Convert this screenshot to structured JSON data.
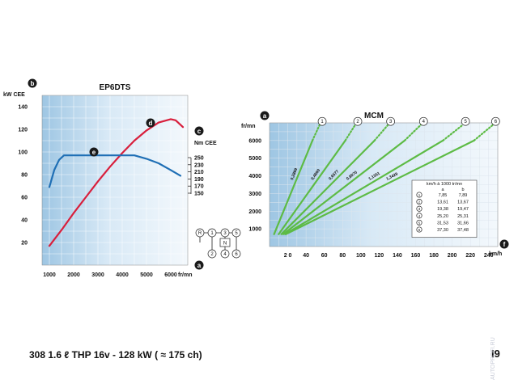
{
  "caption": "308 1.6 ℓ THP 16v - 128 kW ( ≈ 175 ch)",
  "page_number": "I9",
  "watermark": "AUTOPROFI.RU",
  "colors": {
    "power": "#d81f3c",
    "torque": "#1f6fb5",
    "speed_lines": "#5dbb45",
    "panel_left": "#a9cce6",
    "panel_right": "#eef6fc",
    "grid": "#dfe6ec"
  },
  "chart_data": [
    {
      "type": "line",
      "title": "EP6DTS",
      "xlabel": "fr/mn",
      "ylabel_left": "kW CEE",
      "ylabel_right": "Nm CEE",
      "axis_badges": {
        "y_left": "b",
        "y_right": "c",
        "x": "a"
      },
      "x_ticks": [
        1000,
        2000,
        3000,
        4000,
        5000,
        6000
      ],
      "y_ticks": [
        20,
        40,
        60,
        80,
        100,
        120,
        140
      ],
      "y_right_ticks": [
        150,
        170,
        190,
        210,
        230,
        250
      ],
      "xlim": [
        700,
        6700
      ],
      "ylim": [
        0,
        150
      ],
      "grid": true,
      "series": [
        {
          "label": "d",
          "color": "#d81f3c",
          "x": [
            1000,
            1500,
            2000,
            2500,
            3000,
            3500,
            4000,
            4500,
            5000,
            5500,
            6000,
            6200,
            6300,
            6500
          ],
          "y": [
            17,
            31,
            46,
            60,
            74,
            87,
            99,
            110,
            119,
            126,
            129,
            128,
            126,
            122
          ]
        },
        {
          "label": "e",
          "color": "#1f6fb5",
          "x": [
            1000,
            1200,
            1400,
            1600,
            2000,
            3000,
            4000,
            4500,
            5000,
            5500,
            6000,
            6400
          ],
          "y": [
            69,
            84,
            93,
            97,
            97,
            97,
            97,
            97,
            94,
            90,
            84,
            79
          ]
        }
      ],
      "gearshift_labels": [
        "R",
        "1",
        "3",
        "5",
        "2",
        "4",
        "6",
        "N"
      ]
    },
    {
      "type": "line",
      "title": "MCM",
      "ylabel": "fr/mn",
      "xlabel": "km/h",
      "axis_badges": {
        "y": "a",
        "x": "f"
      },
      "x_ticks": [
        20,
        40,
        60,
        80,
        100,
        120,
        140,
        160,
        180,
        200,
        220,
        240
      ],
      "x_tick_labels": [
        "2 0",
        "40",
        "60",
        "80",
        "100",
        "120",
        "140",
        "160",
        "180",
        "200",
        "220",
        "240"
      ],
      "y_ticks": [
        1000,
        2000,
        3000,
        4000,
        5000,
        6000
      ],
      "xlim": [
        0,
        250
      ],
      "ylim": [
        0,
        7000
      ],
      "grid": true,
      "series": [
        {
          "label": "1",
          "ratio": "0,2899",
          "x": [
            5,
            47
          ],
          "y": [
            700,
            6000
          ],
          "ext_x": [
            47,
            55
          ],
          "ext_y": [
            6000,
            6900
          ]
        },
        {
          "label": "2",
          "ratio": "0,4860",
          "x": [
            10,
            83
          ],
          "y": [
            700,
            6000
          ],
          "ext_x": [
            83,
            94
          ],
          "ext_y": [
            6000,
            6900
          ]
        },
        {
          "label": "3",
          "ratio": "0,6577",
          "x": [
            13,
            115
          ],
          "y": [
            700,
            6000
          ],
          "ext_x": [
            115,
            130
          ],
          "ext_y": [
            6000,
            6900
          ]
        },
        {
          "label": "4",
          "ratio": "0,8070",
          "x": [
            15,
            148
          ],
          "y": [
            700,
            6000
          ],
          "ext_x": [
            148,
            166
          ],
          "ext_y": [
            6000,
            6900
          ]
        },
        {
          "label": "5",
          "ratio": "1,1351",
          "x": [
            17,
            190
          ],
          "y": [
            700,
            6000
          ],
          "ext_x": [
            190,
            212
          ],
          "ext_y": [
            6000,
            6900
          ]
        },
        {
          "label": "6",
          "ratio": "1,3429",
          "x": [
            18,
            224
          ],
          "y": [
            700,
            6000
          ],
          "ext_x": [
            224,
            245
          ],
          "ext_y": [
            6000,
            6900
          ]
        }
      ],
      "table": {
        "title": "km/h à 1000 tr/mn",
        "columns": [
          "a",
          "b"
        ],
        "rows": [
          {
            "gear": "1",
            "a": "7,85",
            "b": "7,89"
          },
          {
            "gear": "2",
            "a": "13,61",
            "b": "13,67"
          },
          {
            "gear": "3",
            "a": "19,38",
            "b": "19,47"
          },
          {
            "gear": "4",
            "a": "25,20",
            "b": "25,31"
          },
          {
            "gear": "5",
            "a": "31,53",
            "b": "31,66"
          },
          {
            "gear": "6",
            "a": "37,30",
            "b": "37,48"
          }
        ]
      }
    }
  ]
}
